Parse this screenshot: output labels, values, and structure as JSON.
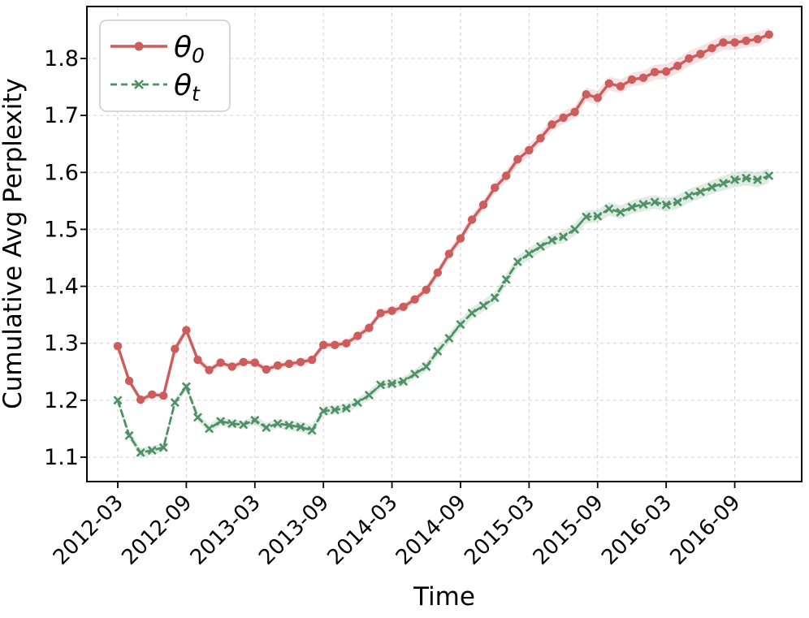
{
  "chart_data": {
    "type": "line",
    "title": "",
    "xlabel": "Time",
    "ylabel": "Cumulative Avg Perplexity",
    "grid": true,
    "legend_position": "upper left",
    "grid_color": "#cfcfcf",
    "axis_color": "#000000",
    "ylim": [
      1.05,
      1.89
    ],
    "y_ticks": [
      1.1,
      1.2,
      1.3,
      1.4,
      1.5,
      1.6,
      1.7,
      1.8
    ],
    "x_ticks": [
      "2012-03",
      "2012-09",
      "2013-03",
      "2013-09",
      "2014-03",
      "2014-09",
      "2015-03",
      "2015-09",
      "2016-03",
      "2016-09"
    ],
    "x": [
      "2012-03",
      "2012-04",
      "2012-05",
      "2012-06",
      "2012-07",
      "2012-08",
      "2012-09",
      "2012-10",
      "2012-11",
      "2012-12",
      "2013-01",
      "2013-02",
      "2013-03",
      "2013-04",
      "2013-05",
      "2013-06",
      "2013-07",
      "2013-08",
      "2013-09",
      "2013-10",
      "2013-11",
      "2013-12",
      "2014-01",
      "2014-02",
      "2014-03",
      "2014-04",
      "2014-05",
      "2014-06",
      "2014-07",
      "2014-08",
      "2014-09",
      "2014-10",
      "2014-11",
      "2014-12",
      "2015-01",
      "2015-02",
      "2015-03",
      "2015-04",
      "2015-05",
      "2015-06",
      "2015-07",
      "2015-08",
      "2015-09",
      "2015-10",
      "2015-11",
      "2015-12",
      "2016-01",
      "2016-02",
      "2016-03",
      "2016-04",
      "2016-05",
      "2016-06",
      "2016-07",
      "2016-08",
      "2016-09",
      "2016-10",
      "2016-11",
      "2016-12"
    ],
    "series": [
      {
        "key": "theta0",
        "name": "θ0",
        "label_base": "θ",
        "label_sub": "0",
        "color": "#CD5C5C",
        "line_style": "solid",
        "marker": "circle",
        "values": [
          1.295,
          1.234,
          1.201,
          1.21,
          1.208,
          1.29,
          1.323,
          1.271,
          1.253,
          1.266,
          1.259,
          1.267,
          1.266,
          1.254,
          1.261,
          1.264,
          1.267,
          1.271,
          1.297,
          1.297,
          1.3,
          1.313,
          1.327,
          1.353,
          1.357,
          1.364,
          1.377,
          1.394,
          1.424,
          1.457,
          1.484,
          1.517,
          1.543,
          1.573,
          1.594,
          1.623,
          1.639,
          1.66,
          1.684,
          1.696,
          1.706,
          1.737,
          1.731,
          1.756,
          1.751,
          1.763,
          1.766,
          1.776,
          1.777,
          1.787,
          1.8,
          1.808,
          1.818,
          1.828,
          1.828,
          1.831,
          1.834,
          1.842
        ],
        "band_halfwidth": [
          0.006,
          0.006,
          0.005,
          0.005,
          0.005,
          0.007,
          0.009,
          0.007,
          0.006,
          0.006,
          0.006,
          0.006,
          0.006,
          0.006,
          0.006,
          0.006,
          0.006,
          0.006,
          0.006,
          0.006,
          0.006,
          0.007,
          0.007,
          0.007,
          0.007,
          0.007,
          0.007,
          0.008,
          0.008,
          0.008,
          0.009,
          0.009,
          0.009,
          0.01,
          0.01,
          0.01,
          0.01,
          0.01,
          0.011,
          0.011,
          0.011,
          0.012,
          0.012,
          0.012,
          0.012,
          0.012,
          0.012,
          0.013,
          0.013,
          0.013,
          0.013,
          0.013,
          0.013,
          0.013,
          0.013,
          0.012,
          0.012,
          0.012
        ]
      },
      {
        "key": "theta_t",
        "name": "θt",
        "label_base": "θ",
        "label_sub": "t",
        "color": "#4E9164",
        "line_style": "dashed",
        "marker": "x",
        "values": [
          1.2,
          1.138,
          1.108,
          1.112,
          1.117,
          1.196,
          1.224,
          1.17,
          1.15,
          1.163,
          1.159,
          1.157,
          1.165,
          1.152,
          1.159,
          1.156,
          1.153,
          1.147,
          1.181,
          1.183,
          1.186,
          1.196,
          1.209,
          1.227,
          1.229,
          1.233,
          1.246,
          1.259,
          1.286,
          1.309,
          1.333,
          1.353,
          1.366,
          1.38,
          1.412,
          1.443,
          1.457,
          1.47,
          1.481,
          1.487,
          1.5,
          1.522,
          1.523,
          1.536,
          1.53,
          1.539,
          1.544,
          1.548,
          1.543,
          1.548,
          1.559,
          1.566,
          1.574,
          1.581,
          1.587,
          1.59,
          1.587,
          1.594
        ],
        "band_halfwidth": [
          0.006,
          0.007,
          0.008,
          0.008,
          0.007,
          0.007,
          0.007,
          0.007,
          0.008,
          0.008,
          0.007,
          0.007,
          0.008,
          0.008,
          0.008,
          0.009,
          0.009,
          0.01,
          0.008,
          0.008,
          0.008,
          0.008,
          0.008,
          0.008,
          0.008,
          0.008,
          0.008,
          0.009,
          0.009,
          0.009,
          0.009,
          0.01,
          0.01,
          0.01,
          0.01,
          0.01,
          0.01,
          0.01,
          0.01,
          0.011,
          0.011,
          0.011,
          0.011,
          0.012,
          0.012,
          0.012,
          0.012,
          0.012,
          0.012,
          0.012,
          0.012,
          0.012,
          0.012,
          0.013,
          0.013,
          0.013,
          0.013,
          0.013
        ]
      }
    ]
  }
}
